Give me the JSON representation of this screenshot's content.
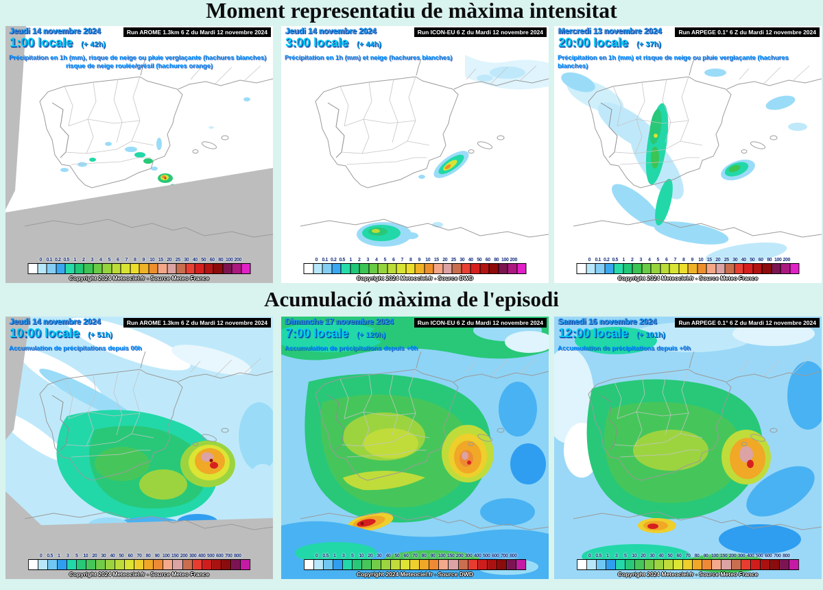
{
  "page": {
    "title_top": "Moment representatiu de màxima intensitat",
    "title_bottom": "Acumulació màxima de l'episodi",
    "background": "#d9f3ef"
  },
  "scales": {
    "hourly": {
      "labels": [
        "0",
        "0.1",
        "0.2",
        "0.5",
        "1",
        "2",
        "3",
        "4",
        "5",
        "6",
        "7",
        "8",
        "9",
        "10",
        "15",
        "20",
        "25",
        "30",
        "40",
        "50",
        "60",
        "80",
        "100",
        "200"
      ],
      "colors": [
        "#ffffff",
        "#b8e7fa",
        "#84cef5",
        "#3aa7f0",
        "#28dcaa",
        "#20c878",
        "#3cc454",
        "#6acc46",
        "#96d43e",
        "#bcdc38",
        "#d8e434",
        "#eede2c",
        "#f0b226",
        "#ee8f2e",
        "#f4a687",
        "#dba3a3",
        "#c96e4e",
        "#e84134",
        "#d62020",
        "#b21313",
        "#8e0b0b",
        "#7c1450",
        "#ab1880",
        "#e220c8"
      ]
    },
    "accumulation": {
      "labels": [
        "0",
        "0.5",
        "1",
        "3",
        "5",
        "10",
        "20",
        "30",
        "40",
        "50",
        "60",
        "70",
        "80",
        "90",
        "100",
        "150",
        "200",
        "300",
        "400",
        "500",
        "600",
        "700",
        "800"
      ],
      "colors": [
        "#ffffff",
        "#b8e7fa",
        "#6fc8f4",
        "#2f9ef0",
        "#22d8a8",
        "#28c878",
        "#46c65a",
        "#72cc48",
        "#9cd440",
        "#c0dc3a",
        "#dce434",
        "#eecf2c",
        "#f0a826",
        "#ee8a36",
        "#f4a98c",
        "#dba3a3",
        "#c96e4e",
        "#e83c30",
        "#cf1d1d",
        "#ab1111",
        "#8a0c0c",
        "#7c1454",
        "#c41aa4"
      ]
    }
  },
  "panels": [
    {
      "model": "AROME",
      "date": "Jeudi 14 novembre 2024",
      "time": "1:00 locale",
      "offset": "(+ 42h)",
      "run": "Run AROME 1.3km 6 Z du Mardi 12 novembre 2024",
      "desc": "Précipitation en 1h (mm), risque de neige ou pluie verglaçante (hachures blanches)",
      "desc2": "risque de neige roulée/grésil (hachures orange)",
      "copyright": "Copyright 2024 Meteociel.fr - Source Meteo France"
    },
    {
      "model": "ICON-EU",
      "date": "Jeudi 14 novembre 2024",
      "time": "3:00 locale",
      "offset": "(+ 44h)",
      "run": "Run ICON-EU 6 Z du Mardi 12 novembre 2024",
      "desc": "Précipitation en 1h (mm) et neige (hachures blanches)",
      "desc2": "",
      "copyright": "Copyright 2024 Meteociel.fr - Source DWD"
    },
    {
      "model": "ARPEGE",
      "date": "Mercredi 13 novembre 2024",
      "time": "20:00 locale",
      "offset": "(+ 37h)",
      "run": "Run ARPEGE 0.1° 6 Z du Mardi 12 novembre 2024",
      "desc": "Précipitation en 1h (mm) et risque de neige ou pluie verglaçante (hachures blanches)",
      "desc2": "",
      "copyright": "Copyright 2024 Meteociel.fr - Source Meteo France"
    },
    {
      "model": "AROME",
      "date": "Jeudi 14 novembre 2024",
      "time": "10:00 locale",
      "offset": "(+ 51h)",
      "run": "Run AROME 1.3km 6 Z du Mardi 12 novembre 2024",
      "desc": "Accumulation de précipitations depuis 00h",
      "desc2": "",
      "copyright": "Copyright 2024 Meteociel.fr - Source Meteo France"
    },
    {
      "model": "ICON-EU",
      "date": "Dimanche 17 novembre 2024",
      "time": "7:00 locale",
      "offset": "(+ 120h)",
      "run": "Run ICON-EU 6 Z du Mardi 12 novembre 2024",
      "desc": "Accumulation de précipitations depuis +0h",
      "desc2": "",
      "copyright": "Copyright 2024 Meteociel.fr - Source DWD"
    },
    {
      "model": "ARPEGE",
      "date": "Samedi 16 novembre 2024",
      "time": "12:00 locale",
      "offset": "(+ 101h)",
      "run": "Run ARPEGE 0.1° 6 Z du Mardi 12 novembre 2024",
      "desc": "Accumulation de précipitations depuis +0h",
      "desc2": "",
      "copyright": "Copyright 2024 Meteociel.fr - Source Meteo France"
    }
  ]
}
